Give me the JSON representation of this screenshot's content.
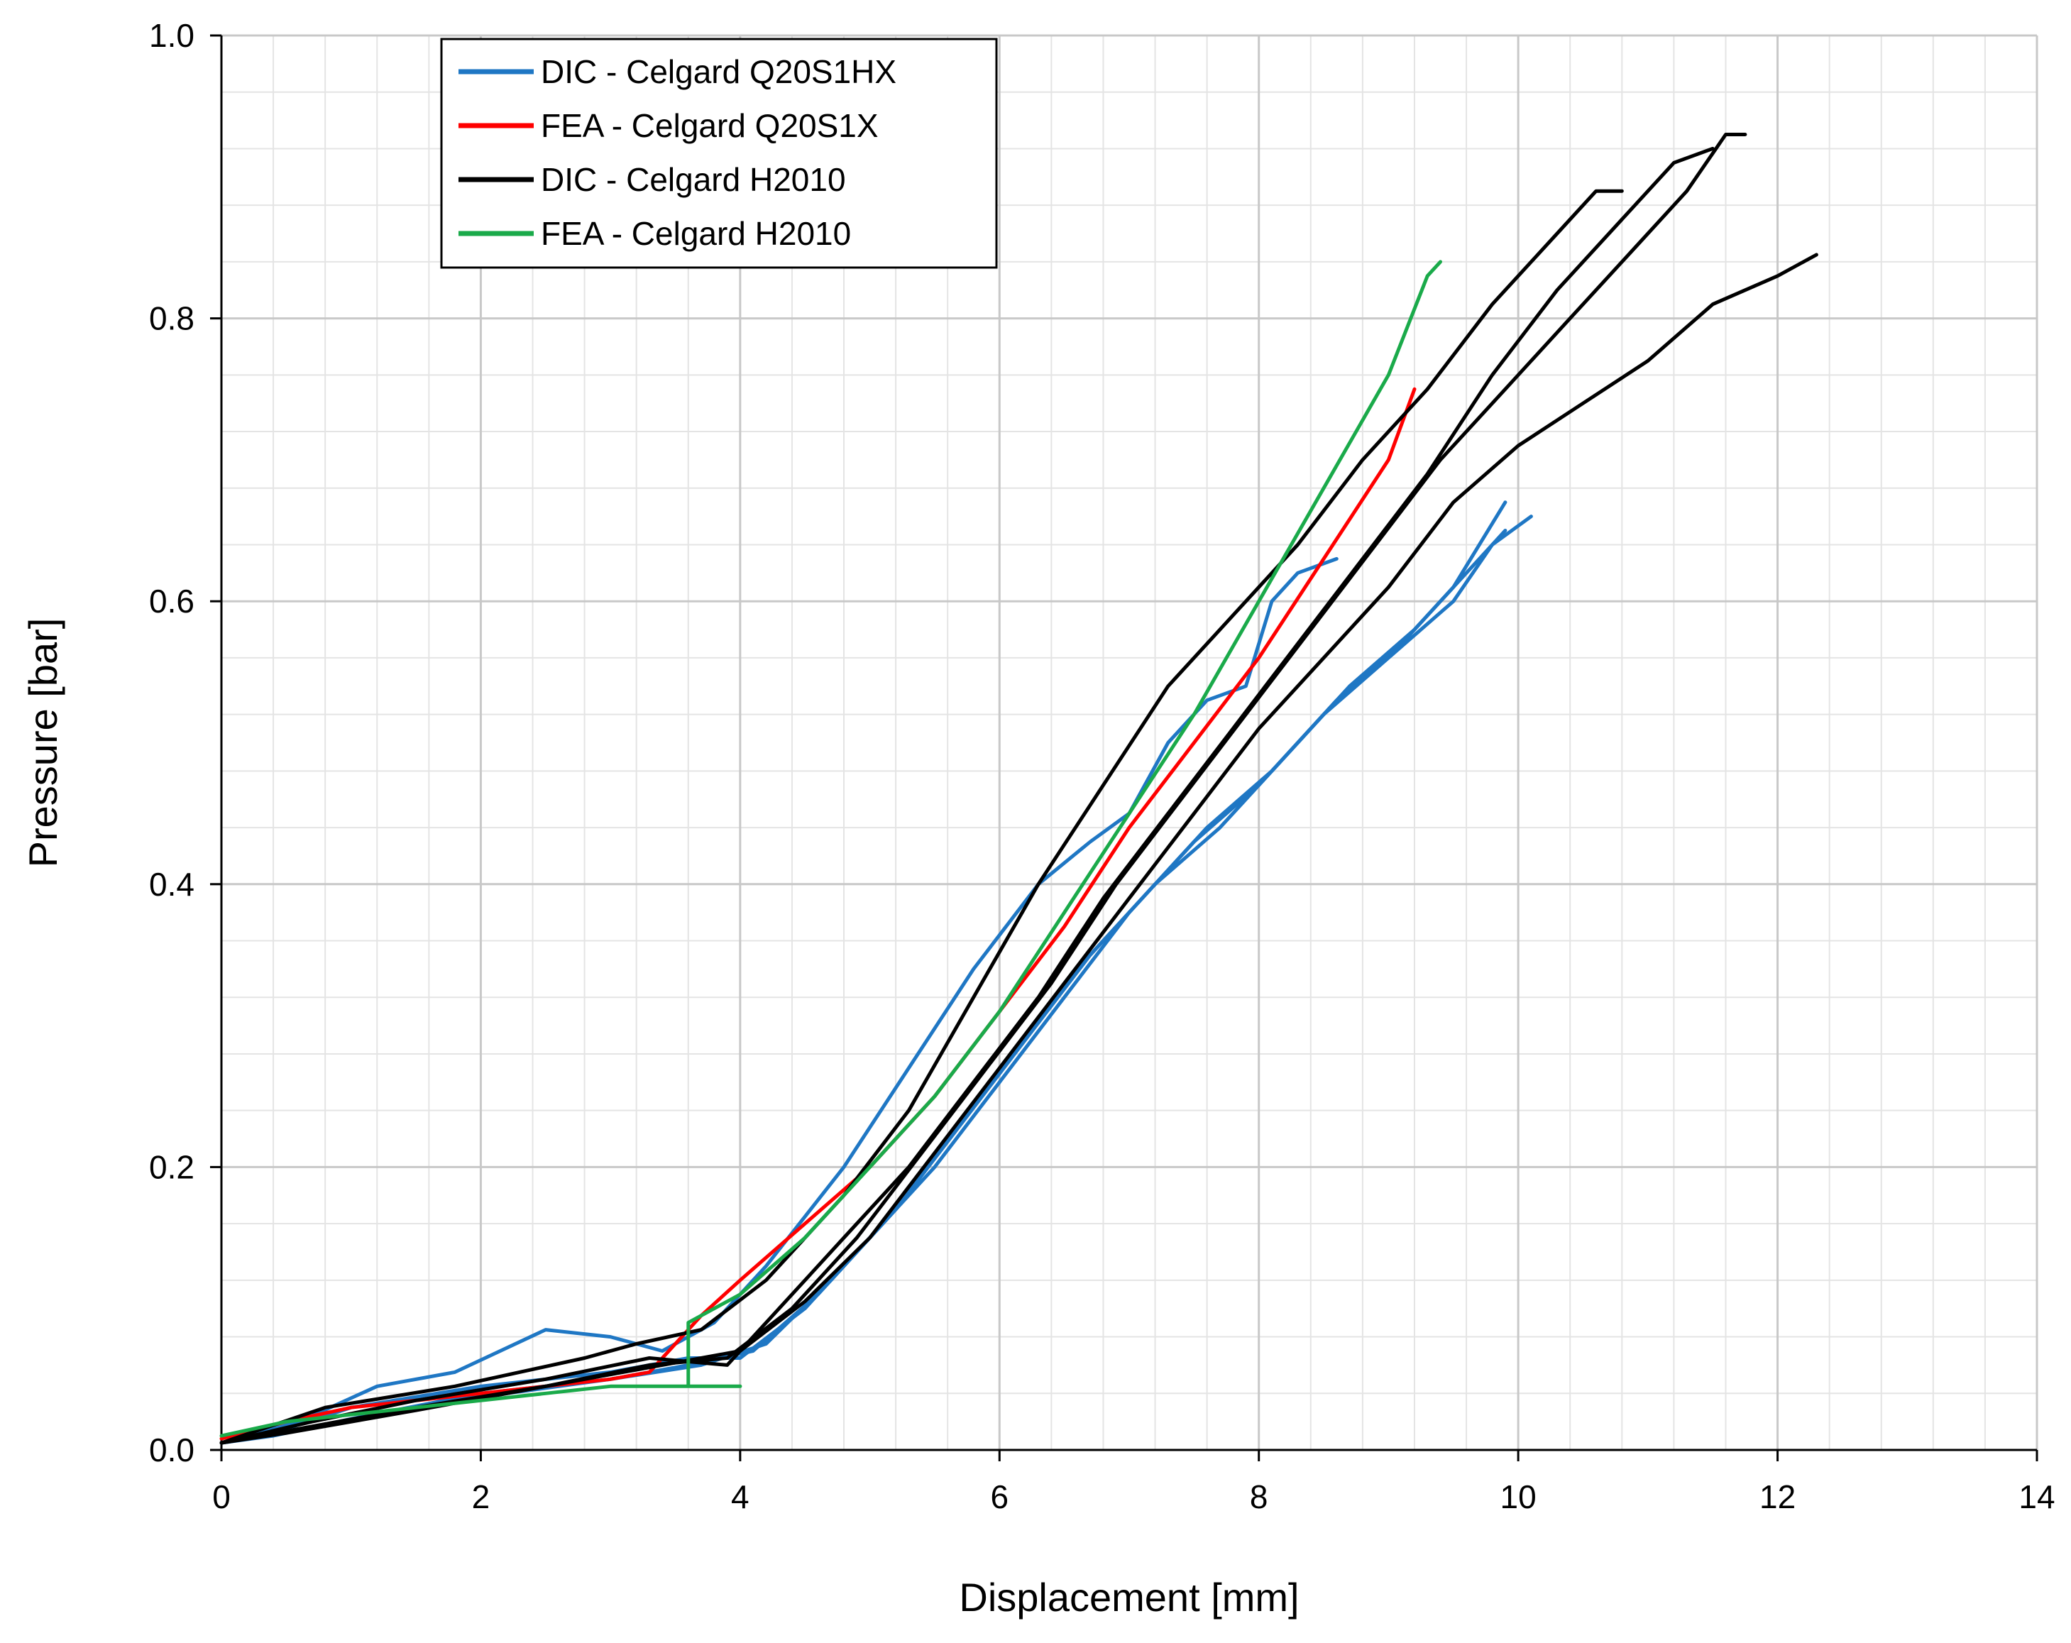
{
  "chart_data": {
    "type": "line",
    "title": "",
    "xlabel": "Displacement [mm]",
    "ylabel": "Pressure [bar]",
    "xlim": [
      0,
      14
    ],
    "ylim": [
      0,
      1.0
    ],
    "x_ticks": [
      0,
      2,
      4,
      6,
      8,
      10,
      12,
      14
    ],
    "x_tick_labels": [
      "0",
      "2",
      "4",
      "6",
      "8",
      "10",
      "12",
      "14"
    ],
    "y_ticks": [
      0,
      0.2,
      0.4,
      0.6,
      0.8,
      1.0
    ],
    "y_tick_labels": [
      "0.0",
      "0.2",
      "0.4",
      "0.6",
      "0.8",
      "1.0"
    ],
    "major_grid": true,
    "minor_grid": true,
    "legend_position": "top-left",
    "legend": [
      {
        "label": "DIC - Celgard Q20S1HX",
        "color": "#1f77c4"
      },
      {
        "label": "FEA - Celgard Q20S1X",
        "color": "#ff0000"
      },
      {
        "label": "DIC - Celgard H2010",
        "color": "#000000"
      },
      {
        "label": "FEA - Celgard H2010",
        "color": "#1aaa4a"
      }
    ],
    "series": [
      {
        "name": "DIC - Celgard Q20S1HX",
        "color": "#1f77c4",
        "points": [
          [
            0,
            0.005
          ],
          [
            0.6,
            0.02
          ],
          [
            1.2,
            0.045
          ],
          [
            1.8,
            0.055
          ],
          [
            2.5,
            0.085
          ],
          [
            3.0,
            0.08
          ],
          [
            3.4,
            0.07
          ],
          [
            3.8,
            0.09
          ],
          [
            4.2,
            0.13
          ],
          [
            4.8,
            0.2
          ],
          [
            5.3,
            0.27
          ],
          [
            5.8,
            0.34
          ],
          [
            6.3,
            0.4
          ],
          [
            6.7,
            0.43
          ],
          [
            7.0,
            0.45
          ],
          [
            7.3,
            0.5
          ],
          [
            7.6,
            0.53
          ],
          [
            7.9,
            0.54
          ],
          [
            8.1,
            0.6
          ],
          [
            8.3,
            0.62
          ],
          [
            8.6,
            0.63
          ]
        ]
      },
      {
        "name": "DIC - Celgard Q20S1HX",
        "color": "#1f77c4",
        "points": [
          [
            0,
            0.005
          ],
          [
            0.5,
            0.015
          ],
          [
            1.0,
            0.03
          ],
          [
            2.0,
            0.045
          ],
          [
            3.0,
            0.055
          ],
          [
            3.6,
            0.065
          ],
          [
            4.0,
            0.065
          ],
          [
            4.5,
            0.1
          ],
          [
            5.0,
            0.15
          ],
          [
            5.5,
            0.2
          ],
          [
            6.0,
            0.26
          ],
          [
            6.5,
            0.32
          ],
          [
            7.0,
            0.38
          ],
          [
            7.5,
            0.43
          ],
          [
            8.0,
            0.47
          ],
          [
            8.5,
            0.52
          ],
          [
            9.0,
            0.56
          ],
          [
            9.5,
            0.6
          ],
          [
            9.8,
            0.64
          ],
          [
            10.1,
            0.66
          ]
        ]
      },
      {
        "name": "DIC - Celgard Q20S1HX",
        "color": "#1f77c4",
        "points": [
          [
            0,
            0.005
          ],
          [
            0.5,
            0.012
          ],
          [
            1.2,
            0.025
          ],
          [
            2.2,
            0.04
          ],
          [
            3.0,
            0.05
          ],
          [
            3.6,
            0.06
          ],
          [
            4.1,
            0.07
          ],
          [
            4.6,
            0.11
          ],
          [
            5.1,
            0.16
          ],
          [
            5.6,
            0.22
          ],
          [
            6.1,
            0.28
          ],
          [
            6.6,
            0.34
          ],
          [
            7.1,
            0.39
          ],
          [
            7.6,
            0.44
          ],
          [
            8.1,
            0.48
          ],
          [
            8.6,
            0.53
          ],
          [
            9.1,
            0.57
          ],
          [
            9.5,
            0.61
          ],
          [
            9.9,
            0.67
          ]
        ]
      },
      {
        "name": "DIC - Celgard Q20S1HX",
        "color": "#1f77c4",
        "points": [
          [
            0,
            0.005
          ],
          [
            0.4,
            0.01
          ],
          [
            1.0,
            0.022
          ],
          [
            2.0,
            0.04
          ],
          [
            3.0,
            0.05
          ],
          [
            3.7,
            0.06
          ],
          [
            4.2,
            0.075
          ],
          [
            4.7,
            0.12
          ],
          [
            5.2,
            0.17
          ],
          [
            5.7,
            0.23
          ],
          [
            6.2,
            0.29
          ],
          [
            6.7,
            0.35
          ],
          [
            7.2,
            0.4
          ],
          [
            7.7,
            0.44
          ],
          [
            8.2,
            0.49
          ],
          [
            8.7,
            0.54
          ],
          [
            9.2,
            0.58
          ],
          [
            9.6,
            0.62
          ],
          [
            9.9,
            0.65
          ]
        ]
      },
      {
        "name": "FEA - Celgard Q20S1X",
        "color": "#ff0000",
        "points": [
          [
            0,
            0.008
          ],
          [
            0.5,
            0.02
          ],
          [
            1.0,
            0.03
          ],
          [
            2.0,
            0.04
          ],
          [
            3.0,
            0.05
          ],
          [
            3.3,
            0.055
          ],
          [
            3.7,
            0.095
          ],
          [
            4.0,
            0.12
          ],
          [
            4.5,
            0.16
          ],
          [
            5.0,
            0.2
          ],
          [
            5.5,
            0.25
          ],
          [
            6.0,
            0.31
          ],
          [
            6.5,
            0.37
          ],
          [
            7.0,
            0.44
          ],
          [
            7.5,
            0.5
          ],
          [
            8.0,
            0.56
          ],
          [
            8.5,
            0.63
          ],
          [
            9.0,
            0.7
          ],
          [
            9.2,
            0.75
          ]
        ]
      },
      {
        "name": "DIC - Celgard H2010",
        "color": "#000000",
        "points": [
          [
            0,
            0.005
          ],
          [
            0.8,
            0.03
          ],
          [
            1.8,
            0.045
          ],
          [
            2.8,
            0.065
          ],
          [
            3.2,
            0.075
          ],
          [
            3.7,
            0.085
          ],
          [
            4.2,
            0.12
          ],
          [
            4.8,
            0.18
          ],
          [
            5.3,
            0.24
          ],
          [
            5.8,
            0.32
          ],
          [
            6.3,
            0.4
          ],
          [
            6.8,
            0.47
          ],
          [
            7.3,
            0.54
          ],
          [
            7.8,
            0.59
          ],
          [
            8.3,
            0.64
          ],
          [
            8.8,
            0.7
          ],
          [
            9.3,
            0.75
          ],
          [
            9.8,
            0.81
          ],
          [
            10.3,
            0.86
          ],
          [
            10.6,
            0.89
          ],
          [
            10.8,
            0.89
          ]
        ]
      },
      {
        "name": "DIC - Celgard H2010",
        "color": "#000000",
        "points": [
          [
            0,
            0.005
          ],
          [
            0.7,
            0.02
          ],
          [
            1.5,
            0.035
          ],
          [
            2.5,
            0.05
          ],
          [
            3.3,
            0.065
          ],
          [
            3.9,
            0.06
          ],
          [
            4.3,
            0.1
          ],
          [
            4.8,
            0.15
          ],
          [
            5.3,
            0.2
          ],
          [
            5.8,
            0.26
          ],
          [
            6.3,
            0.32
          ],
          [
            6.8,
            0.39
          ],
          [
            7.3,
            0.45
          ],
          [
            7.8,
            0.51
          ],
          [
            8.3,
            0.57
          ],
          [
            8.8,
            0.63
          ],
          [
            9.3,
            0.69
          ],
          [
            9.8,
            0.76
          ],
          [
            10.3,
            0.82
          ],
          [
            10.8,
            0.87
          ],
          [
            11.2,
            0.91
          ],
          [
            11.5,
            0.92
          ]
        ]
      },
      {
        "name": "DIC - Celgard H2010",
        "color": "#000000",
        "points": [
          [
            0,
            0.005
          ],
          [
            0.6,
            0.015
          ],
          [
            1.5,
            0.03
          ],
          [
            2.5,
            0.045
          ],
          [
            3.3,
            0.06
          ],
          [
            3.9,
            0.065
          ],
          [
            4.4,
            0.1
          ],
          [
            4.9,
            0.15
          ],
          [
            5.4,
            0.21
          ],
          [
            5.9,
            0.27
          ],
          [
            6.4,
            0.33
          ],
          [
            6.9,
            0.4
          ],
          [
            7.4,
            0.46
          ],
          [
            7.9,
            0.52
          ],
          [
            8.4,
            0.58
          ],
          [
            8.9,
            0.64
          ],
          [
            9.4,
            0.7
          ],
          [
            9.9,
            0.75
          ],
          [
            10.4,
            0.8
          ],
          [
            10.9,
            0.85
          ],
          [
            11.3,
            0.89
          ],
          [
            11.6,
            0.93
          ],
          [
            11.75,
            0.93
          ]
        ]
      },
      {
        "name": "DIC - Celgard H2010",
        "color": "#000000",
        "points": [
          [
            0,
            0.005
          ],
          [
            0.5,
            0.012
          ],
          [
            1.5,
            0.028
          ],
          [
            2.5,
            0.045
          ],
          [
            3.4,
            0.06
          ],
          [
            4.0,
            0.07
          ],
          [
            4.5,
            0.105
          ],
          [
            5.0,
            0.15
          ],
          [
            5.5,
            0.21
          ],
          [
            6.0,
            0.27
          ],
          [
            6.5,
            0.33
          ],
          [
            7.0,
            0.39
          ],
          [
            7.5,
            0.45
          ],
          [
            8.0,
            0.51
          ],
          [
            8.5,
            0.56
          ],
          [
            9.0,
            0.61
          ],
          [
            9.5,
            0.67
          ],
          [
            10.0,
            0.71
          ],
          [
            10.5,
            0.74
          ],
          [
            11.0,
            0.77
          ],
          [
            11.5,
            0.81
          ],
          [
            12.0,
            0.83
          ],
          [
            12.3,
            0.845
          ]
        ]
      },
      {
        "name": "FEA - Celgard H2010",
        "color": "#1aaa4a",
        "points": [
          [
            0,
            0.01
          ],
          [
            0.5,
            0.02
          ],
          [
            1.5,
            0.03
          ],
          [
            2.5,
            0.04
          ],
          [
            3.0,
            0.045
          ],
          [
            3.5,
            0.045
          ],
          [
            4.0,
            0.045
          ],
          [
            3.6,
            0.045
          ],
          [
            3.6,
            0.09
          ],
          [
            4.0,
            0.11
          ],
          [
            4.5,
            0.15
          ],
          [
            5.0,
            0.2
          ],
          [
            5.5,
            0.25
          ],
          [
            6.0,
            0.31
          ],
          [
            6.5,
            0.38
          ],
          [
            7.0,
            0.45
          ],
          [
            7.5,
            0.52
          ],
          [
            8.0,
            0.6
          ],
          [
            8.5,
            0.68
          ],
          [
            9.0,
            0.76
          ],
          [
            9.3,
            0.83
          ],
          [
            9.4,
            0.84
          ]
        ]
      }
    ]
  }
}
